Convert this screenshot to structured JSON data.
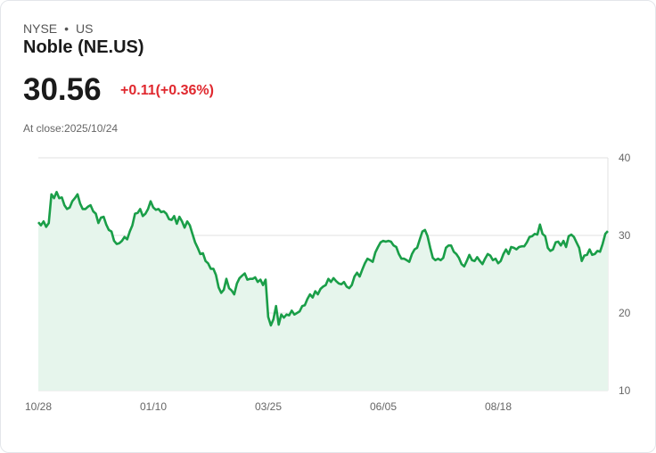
{
  "header": {
    "exchange": "NYSE",
    "separator": "•",
    "region": "US",
    "name": "Noble (NE.US)",
    "price": "30.56",
    "change": "+0.11(+0.36%)",
    "close_label": "At close:2025/10/24"
  },
  "colors": {
    "line": "#1a9e48",
    "fill": "#e6f5ec",
    "grid": "#e0e0e0",
    "down": "#e0282e"
  },
  "chart_data": {
    "type": "area",
    "title": "Noble (NE.US)",
    "xlabel": "",
    "ylabel": "",
    "ylim": [
      10,
      40
    ],
    "y_ticks": [
      "40",
      "30",
      "20",
      "10"
    ],
    "y_tick_values": [
      40,
      30,
      20,
      10
    ],
    "x_ticks": [
      "10/28",
      "01/10",
      "03/25",
      "06/05",
      "08/18"
    ],
    "grid": true,
    "values": [
      31.7,
      31.3,
      31.8,
      31.1,
      31.6,
      35.3,
      34.8,
      35.6,
      34.8,
      34.9,
      33.9,
      33.4,
      33.6,
      34.4,
      34.8,
      35.3,
      34.1,
      33.4,
      33.4,
      33.7,
      33.9,
      33.1,
      32.8,
      31.6,
      32.3,
      32.4,
      31.4,
      30.7,
      30.5,
      29.3,
      28.9,
      29.0,
      29.3,
      29.8,
      29.5,
      30.5,
      31.3,
      32.8,
      32.9,
      33.4,
      32.5,
      32.8,
      33.4,
      34.4,
      33.6,
      33.3,
      33.4,
      33.0,
      33.1,
      32.8,
      32.1,
      32.0,
      32.5,
      31.5,
      32.4,
      31.8,
      31.0,
      31.8,
      31.3,
      30.2,
      29.1,
      28.4,
      27.6,
      27.7,
      26.7,
      26.4,
      25.7,
      25.7,
      24.9,
      23.3,
      22.6,
      23.0,
      24.4,
      23.2,
      22.9,
      22.4,
      23.8,
      24.5,
      24.8,
      25.1,
      24.3,
      24.4,
      24.4,
      24.6,
      24.0,
      24.3,
      23.6,
      24.3,
      19.5,
      18.4,
      19.2,
      20.9,
      18.5,
      19.8,
      19.4,
      19.8,
      19.7,
      20.3,
      19.8,
      20.0,
      20.2,
      20.9,
      21.0,
      21.8,
      22.4,
      22.0,
      22.8,
      22.4,
      23.1,
      23.4,
      23.6,
      24.4,
      24.0,
      24.5,
      24.1,
      23.8,
      23.7,
      24.0,
      23.4,
      23.2,
      23.6,
      24.7,
      25.2,
      24.7,
      25.6,
      26.4,
      27.0,
      26.8,
      26.6,
      27.8,
      28.5,
      29.1,
      29.3,
      29.2,
      29.3,
      29.2,
      28.7,
      28.5,
      27.6,
      27.0,
      27.0,
      26.8,
      26.6,
      27.6,
      28.2,
      28.4,
      29.5,
      30.5,
      30.7,
      29.9,
      28.4,
      27.1,
      26.8,
      27.0,
      26.8,
      27.1,
      28.4,
      28.7,
      28.7,
      27.9,
      27.6,
      27.1,
      26.3,
      26.0,
      26.7,
      27.5,
      26.8,
      26.7,
      27.2,
      26.7,
      26.3,
      27.0,
      27.6,
      27.4,
      26.8,
      27.0,
      26.4,
      26.7,
      27.6,
      28.2,
      27.6,
      28.5,
      28.4,
      28.2,
      28.5,
      28.6,
      28.6,
      29.1,
      29.8,
      29.9,
      30.2,
      30.1,
      31.4,
      30.2,
      29.9,
      28.4,
      28.0,
      28.2,
      29.1,
      29.2,
      28.7,
      29.3,
      28.5,
      29.9,
      30.1,
      29.8,
      29.1,
      28.4,
      26.7,
      27.4,
      27.5,
      28.2,
      27.5,
      27.6,
      28.0,
      27.9,
      28.9,
      30.2,
      30.56
    ]
  }
}
